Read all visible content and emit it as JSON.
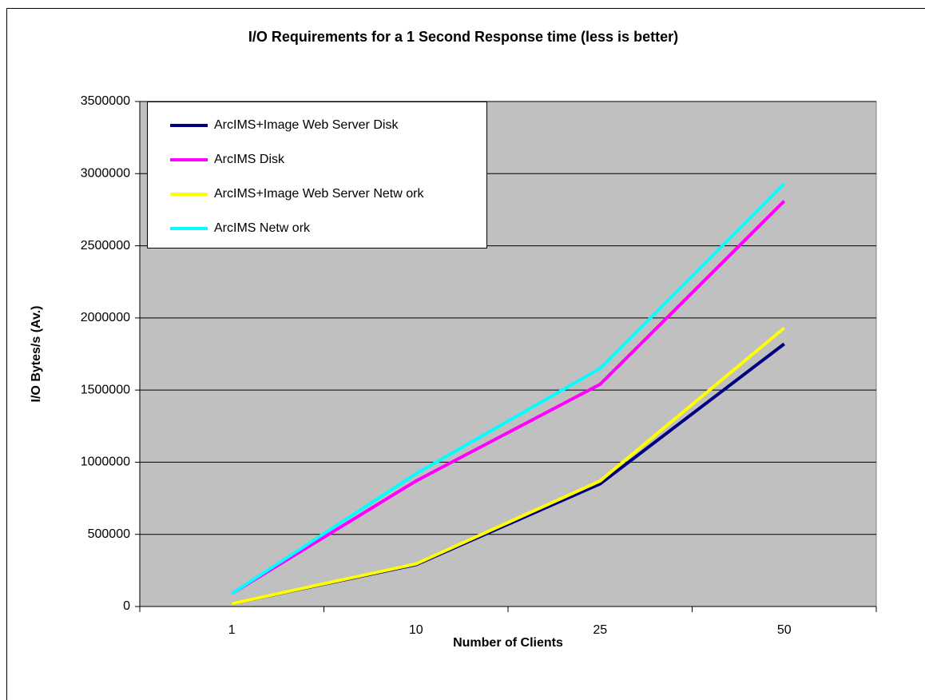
{
  "chart_data": {
    "type": "line",
    "title": "I/O Requirements for a 1 Second Response time (less is better)",
    "x_label": "Number of Clients",
    "y_label": "I/O Bytes/s (Av.)",
    "categories": [
      "1",
      "10",
      "25",
      "50"
    ],
    "series": [
      {
        "name": "ArcIMS+Image Web Server Disk",
        "color": "#000080",
        "values": [
          20000,
          290000,
          850000,
          1820000
        ]
      },
      {
        "name": "ArcIMS Disk",
        "color": "#ff00ff",
        "values": [
          90000,
          870000,
          1540000,
          2810000
        ]
      },
      {
        "name": "ArcIMS+Image Web Server Netw ork",
        "color": "#ffff00",
        "values": [
          20000,
          295000,
          870000,
          1930000
        ]
      },
      {
        "name": "ArcIMS Netw ork",
        "color": "#00ffff",
        "values": [
          90000,
          920000,
          1650000,
          2930000
        ]
      }
    ],
    "ylim": [
      0,
      3500000
    ],
    "yticks": [
      0,
      500000,
      1000000,
      1500000,
      2000000,
      2500000,
      3000000,
      3500000
    ],
    "grid": true,
    "legend": "top-left"
  }
}
